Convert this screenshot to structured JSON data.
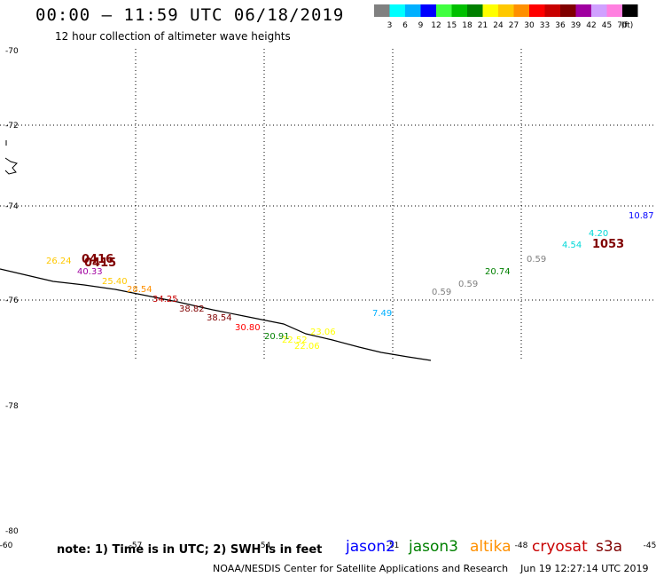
{
  "header": {
    "title": "00:00 – 11:59 UTC 06/18/2019",
    "subtitle": "12 hour collection of altimeter wave heights"
  },
  "legend": {
    "bins": [
      {
        "label": "3",
        "color": "#808080"
      },
      {
        "label": "6",
        "color": "#00ffff"
      },
      {
        "label": "9",
        "color": "#00b0ff"
      },
      {
        "label": "12",
        "color": "#0000ff"
      },
      {
        "label": "15",
        "color": "#40ff40"
      },
      {
        "label": "18",
        "color": "#00c000"
      },
      {
        "label": "21",
        "color": "#008000"
      },
      {
        "label": "24",
        "color": "#ffff00"
      },
      {
        "label": "27",
        "color": "#ffc800"
      },
      {
        "label": "30",
        "color": "#ff9000"
      },
      {
        "label": "33",
        "color": "#ff0000"
      },
      {
        "label": "36",
        "color": "#c80000"
      },
      {
        "label": "39",
        "color": "#800000"
      },
      {
        "label": "42",
        "color": "#a000a0"
      },
      {
        "label": "45",
        "color": "#d0a0ff"
      },
      {
        "label": "70",
        "color": "#ff80e0"
      },
      {
        "label": "",
        "color": "#000000"
      }
    ],
    "unit": "(ft)"
  },
  "lat_labels": [
    "-70",
    "-72",
    "-74",
    "-76",
    "-78",
    "-80"
  ],
  "lon_labels": [
    "-60",
    "-57",
    "-54",
    "-51",
    "-48",
    "-45"
  ],
  "measurements": [
    {
      "text": "26.24",
      "color": "#ffc800"
    },
    {
      "text": "0416",
      "color": "#800000"
    },
    {
      "text": "0415",
      "color": "#800000"
    },
    {
      "text": "40.33",
      "color": "#a000a0"
    },
    {
      "text": "25.40",
      "color": "#ffc800"
    },
    {
      "text": "28.54",
      "color": "#ff9000"
    },
    {
      "text": "34.25",
      "color": "#c80000"
    },
    {
      "text": "38.82",
      "color": "#800000"
    },
    {
      "text": "38.54",
      "color": "#800000"
    },
    {
      "text": "30.80",
      "color": "#ff0000"
    },
    {
      "text": "20.91",
      "color": "#008000"
    },
    {
      "text": "23.06",
      "color": "#ffff00"
    },
    {
      "text": "22.52",
      "color": "#ffff00"
    },
    {
      "text": "22.06",
      "color": "#ffff00"
    },
    {
      "text": "7.49",
      "color": "#00b0ff"
    },
    {
      "text": "0.59",
      "color": "#808080"
    },
    {
      "text": "0.59",
      "color": "#808080"
    },
    {
      "text": "20.74",
      "color": "#008000"
    },
    {
      "text": "0.59",
      "color": "#808080"
    },
    {
      "text": "4.54",
      "color": "#00d8d8"
    },
    {
      "text": "4.20",
      "color": "#00d8d8"
    },
    {
      "text": "1053",
      "color": "#800000"
    },
    {
      "text": "10.87",
      "color": "#0000ff"
    }
  ],
  "footer": {
    "note": "note: 1) Time is in UTC; 2) SWH is in feet",
    "credit": "NOAA/NESDIS Center for Satellite Applications and Research",
    "timestamp": "Jun 19 12:27:14 UTC 2019",
    "satellites": [
      {
        "name": "jason2",
        "color": "#0000ff"
      },
      {
        "name": "jason3",
        "color": "#008000"
      },
      {
        "name": "altika",
        "color": "#ff9000"
      },
      {
        "name": "cryosat",
        "color": "#c80000"
      },
      {
        "name": "s3a",
        "color": "#800000"
      }
    ]
  }
}
